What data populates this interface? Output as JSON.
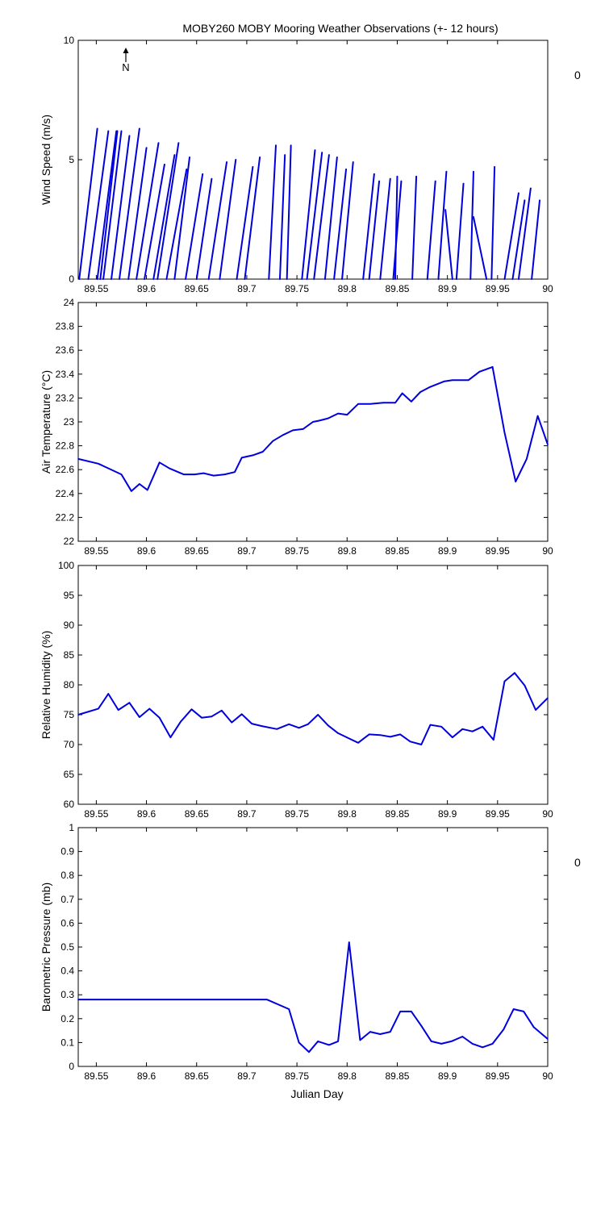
{
  "figure": {
    "title": "MOBY260 MOBY Mooring Weather Observations (+- 12 hours)",
    "xlabel": "Julian Day",
    "north_label": "N",
    "side_values": [
      "0",
      "0"
    ],
    "side_value_color": "#cc0000",
    "series_color": "#0000dd"
  },
  "chart_data": [
    {
      "type": "line",
      "subtype": "wind-vector-stick",
      "title": "",
      "xlabel": "",
      "ylabel": "Wind Speed (m/s)",
      "xlim": [
        89.532,
        90.0
      ],
      "ylim": [
        0,
        10
      ],
      "xticks": [
        89.55,
        89.6,
        89.65,
        89.7,
        89.75,
        89.8,
        89.85,
        89.9,
        89.95,
        90
      ],
      "xtick_labels": [
        "89.55",
        "89.6",
        "89.65",
        "89.7",
        "89.75",
        "89.8",
        "89.85",
        "89.9",
        "89.95",
        "90"
      ],
      "yticks": [
        0,
        5,
        10
      ],
      "ytick_labels": [
        "0",
        "5",
        "10"
      ],
      "segments": [
        {
          "x0": 89.533,
          "y0": 0,
          "x1": 89.551,
          "y1": 6.3
        },
        {
          "x0": 89.542,
          "y0": 0,
          "x1": 89.562,
          "y1": 6.2
        },
        {
          "x0": 89.551,
          "y0": 0,
          "x1": 89.57,
          "y1": 6.2
        },
        {
          "x0": 89.554,
          "y0": 0,
          "x1": 89.571,
          "y1": 6.2
        },
        {
          "x0": 89.557,
          "y0": 0,
          "x1": 89.575,
          "y1": 6.2
        },
        {
          "x0": 89.565,
          "y0": 0,
          "x1": 89.583,
          "y1": 6.0
        },
        {
          "x0": 89.573,
          "y0": 0,
          "x1": 89.593,
          "y1": 6.3
        },
        {
          "x0": 89.582,
          "y0": 0,
          "x1": 89.6,
          "y1": 5.5
        },
        {
          "x0": 89.59,
          "y0": 0,
          "x1": 89.612,
          "y1": 5.7
        },
        {
          "x0": 89.598,
          "y0": 0,
          "x1": 89.618,
          "y1": 4.8
        },
        {
          "x0": 89.607,
          "y0": 0,
          "x1": 89.628,
          "y1": 5.2
        },
        {
          "x0": 89.611,
          "y0": 0,
          "x1": 89.632,
          "y1": 5.7
        },
        {
          "x0": 89.62,
          "y0": 0,
          "x1": 89.64,
          "y1": 4.6
        },
        {
          "x0": 89.628,
          "y0": 0,
          "x1": 89.643,
          "y1": 5.1
        },
        {
          "x0": 89.639,
          "y0": 0,
          "x1": 89.656,
          "y1": 4.4
        },
        {
          "x0": 89.65,
          "y0": 0,
          "x1": 89.665,
          "y1": 4.2
        },
        {
          "x0": 89.662,
          "y0": 0,
          "x1": 89.68,
          "y1": 4.9
        },
        {
          "x0": 89.673,
          "y0": 0,
          "x1": 89.689,
          "y1": 5.0
        },
        {
          "x0": 89.69,
          "y0": 0,
          "x1": 89.706,
          "y1": 4.7
        },
        {
          "x0": 89.698,
          "y0": 0,
          "x1": 89.713,
          "y1": 5.1
        },
        {
          "x0": 89.722,
          "y0": 0,
          "x1": 89.729,
          "y1": 5.6
        },
        {
          "x0": 89.733,
          "y0": 0,
          "x1": 89.738,
          "y1": 5.2
        },
        {
          "x0": 89.74,
          "y0": 0,
          "x1": 89.744,
          "y1": 5.6
        },
        {
          "x0": 89.755,
          "y0": 0,
          "x1": 89.768,
          "y1": 5.4
        },
        {
          "x0": 89.76,
          "y0": 0,
          "x1": 89.775,
          "y1": 5.3
        },
        {
          "x0": 89.767,
          "y0": 0,
          "x1": 89.782,
          "y1": 5.2
        },
        {
          "x0": 89.778,
          "y0": 0,
          "x1": 89.79,
          "y1": 5.1
        },
        {
          "x0": 89.787,
          "y0": 0,
          "x1": 89.799,
          "y1": 4.6
        },
        {
          "x0": 89.795,
          "y0": 0,
          "x1": 89.806,
          "y1": 4.9
        },
        {
          "x0": 89.816,
          "y0": 0,
          "x1": 89.827,
          "y1": 4.4
        },
        {
          "x0": 89.822,
          "y0": 0,
          "x1": 89.832,
          "y1": 4.1
        },
        {
          "x0": 89.833,
          "y0": 0,
          "x1": 89.843,
          "y1": 4.2
        },
        {
          "x0": 89.846,
          "y0": 0,
          "x1": 89.854,
          "y1": 4.1
        },
        {
          "x0": 89.848,
          "y0": 0,
          "x1": 89.85,
          "y1": 4.3
        },
        {
          "x0": 89.865,
          "y0": 0,
          "x1": 89.869,
          "y1": 4.3
        },
        {
          "x0": 89.88,
          "y0": 0,
          "x1": 89.888,
          "y1": 4.1
        },
        {
          "x0": 89.891,
          "y0": 0,
          "x1": 89.899,
          "y1": 4.5
        },
        {
          "x0": 89.905,
          "y0": 0,
          "x1": 89.898,
          "y1": 2.9
        },
        {
          "x0": 89.909,
          "y0": 0,
          "x1": 89.916,
          "y1": 4.0
        },
        {
          "x0": 89.923,
          "y0": 0,
          "x1": 89.926,
          "y1": 4.5
        },
        {
          "x0": 89.939,
          "y0": 0,
          "x1": 89.926,
          "y1": 2.6
        },
        {
          "x0": 89.944,
          "y0": 0,
          "x1": 89.947,
          "y1": 4.7
        },
        {
          "x0": 89.957,
          "y0": 0,
          "x1": 89.971,
          "y1": 3.6
        },
        {
          "x0": 89.965,
          "y0": 0,
          "x1": 89.977,
          "y1": 3.3
        },
        {
          "x0": 89.971,
          "y0": 0,
          "x1": 89.983,
          "y1": 3.8
        },
        {
          "x0": 89.984,
          "y0": 0,
          "x1": 89.992,
          "y1": 3.3
        }
      ]
    },
    {
      "type": "line",
      "title": "",
      "xlabel": "",
      "ylabel": "Air Temperature (°C)",
      "xlim": [
        89.532,
        90.0
      ],
      "ylim": [
        22,
        24
      ],
      "xticks": [
        89.55,
        89.6,
        89.65,
        89.7,
        89.75,
        89.8,
        89.85,
        89.9,
        89.95,
        90
      ],
      "xtick_labels": [
        "89.55",
        "89.6",
        "89.65",
        "89.7",
        "89.75",
        "89.8",
        "89.85",
        "89.9",
        "89.95",
        "90"
      ],
      "yticks": [
        22,
        22.2,
        22.4,
        22.6,
        22.8,
        23,
        23.2,
        23.4,
        23.6,
        23.8,
        24
      ],
      "ytick_labels": [
        "22",
        "22.2",
        "22.4",
        "22.6",
        "22.8",
        "23",
        "23.2",
        "23.4",
        "23.6",
        "23.8",
        "24"
      ],
      "x": [
        89.532,
        89.552,
        89.575,
        89.585,
        89.593,
        89.601,
        89.613,
        89.623,
        89.637,
        89.648,
        89.657,
        89.667,
        89.678,
        89.688,
        89.695,
        89.706,
        89.716,
        89.726,
        89.736,
        89.746,
        89.756,
        89.766,
        89.772,
        89.781,
        89.791,
        89.8,
        89.811,
        89.823,
        89.836,
        89.848,
        89.855,
        89.864,
        89.873,
        89.882,
        89.897,
        89.905,
        89.921,
        89.932,
        89.945,
        89.957,
        89.968,
        89.979,
        89.99,
        90.0
      ],
      "values": [
        22.69,
        22.65,
        22.56,
        22.42,
        22.48,
        22.43,
        22.66,
        22.61,
        22.56,
        22.56,
        22.57,
        22.55,
        22.56,
        22.58,
        22.7,
        22.72,
        22.75,
        22.84,
        22.89,
        22.93,
        22.94,
        23.0,
        23.01,
        23.03,
        23.07,
        23.06,
        23.15,
        23.15,
        23.16,
        23.16,
        23.24,
        23.17,
        23.25,
        23.29,
        23.34,
        23.35,
        23.35,
        23.42,
        23.46,
        22.91,
        22.5,
        22.69,
        23.05,
        22.81
      ]
    },
    {
      "type": "line",
      "title": "",
      "xlabel": "",
      "ylabel": "Relative Humidity (%)",
      "xlim": [
        89.532,
        90.0
      ],
      "ylim": [
        60,
        100
      ],
      "xticks": [
        89.55,
        89.6,
        89.65,
        89.7,
        89.75,
        89.8,
        89.85,
        89.9,
        89.95,
        90
      ],
      "xtick_labels": [
        "89.55",
        "89.6",
        "89.65",
        "89.7",
        "89.75",
        "89.8",
        "89.85",
        "89.9",
        "89.95",
        "90"
      ],
      "yticks": [
        60,
        65,
        70,
        75,
        80,
        85,
        90,
        95,
        100
      ],
      "ytick_labels": [
        "60",
        "65",
        "70",
        "75",
        "80",
        "85",
        "90",
        "95",
        "100"
      ],
      "x": [
        89.532,
        89.552,
        89.562,
        89.572,
        89.583,
        89.593,
        89.603,
        89.613,
        89.624,
        89.634,
        89.645,
        89.655,
        89.665,
        89.675,
        89.685,
        89.695,
        89.705,
        89.715,
        89.73,
        89.742,
        89.752,
        89.761,
        89.771,
        89.781,
        89.791,
        89.801,
        89.811,
        89.822,
        89.833,
        89.843,
        89.853,
        89.863,
        89.874,
        89.883,
        89.894,
        89.905,
        89.915,
        89.925,
        89.935,
        89.946,
        89.957,
        89.967,
        89.977,
        89.988,
        90.0
      ],
      "values": [
        75,
        76,
        78.5,
        75.8,
        77,
        74.6,
        76,
        74.5,
        71.2,
        73.8,
        75.9,
        74.5,
        74.7,
        75.7,
        73.7,
        75.1,
        73.5,
        73.1,
        72.6,
        73.4,
        72.8,
        73.4,
        75,
        73.2,
        71.9,
        71.1,
        70.3,
        71.7,
        71.6,
        71.3,
        71.7,
        70.5,
        70,
        73.3,
        73,
        71.2,
        72.6,
        72.2,
        73,
        70.8,
        80.6,
        82,
        79.9,
        75.8,
        77.8
      ]
    },
    {
      "type": "line",
      "title": "",
      "xlabel": "Julian Day",
      "ylabel": "Barometric Pressure (mb)",
      "xlim": [
        89.532,
        90.0
      ],
      "ylim": [
        0,
        1
      ],
      "xticks": [
        89.55,
        89.6,
        89.65,
        89.7,
        89.75,
        89.8,
        89.85,
        89.9,
        89.95,
        90
      ],
      "xtick_labels": [
        "89.55",
        "89.6",
        "89.65",
        "89.7",
        "89.75",
        "89.8",
        "89.85",
        "89.9",
        "89.95",
        "90"
      ],
      "yticks": [
        0,
        0.1,
        0.2,
        0.3,
        0.4,
        0.5,
        0.6,
        0.7,
        0.8,
        0.9,
        1
      ],
      "ytick_labels": [
        "0",
        "0.1",
        "0.2",
        "0.3",
        "0.4",
        "0.5",
        "0.6",
        "0.7",
        "0.8",
        "0.9",
        "1"
      ],
      "x": [
        89.532,
        89.72,
        89.742,
        89.752,
        89.762,
        89.771,
        89.782,
        89.791,
        89.802,
        89.813,
        89.823,
        89.833,
        89.843,
        89.853,
        89.864,
        89.874,
        89.884,
        89.894,
        89.904,
        89.915,
        89.925,
        89.935,
        89.945,
        89.956,
        89.966,
        89.976,
        89.986,
        90.0
      ],
      "values": [
        0.28,
        0.28,
        0.24,
        0.1,
        0.06,
        0.105,
        0.09,
        0.105,
        0.52,
        0.11,
        0.145,
        0.135,
        0.145,
        0.23,
        0.23,
        0.17,
        0.105,
        0.095,
        0.105,
        0.125,
        0.095,
        0.08,
        0.095,
        0.155,
        0.24,
        0.23,
        0.165,
        0.115
      ]
    }
  ]
}
